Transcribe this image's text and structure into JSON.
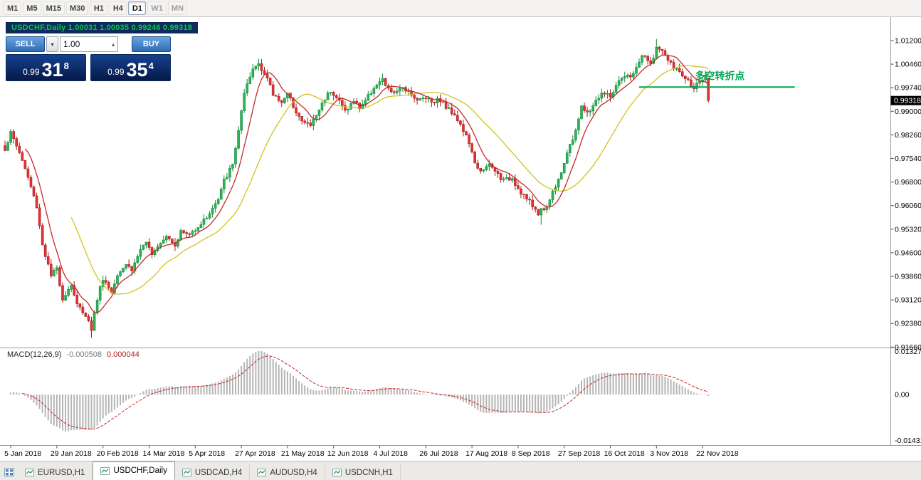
{
  "toolbar": {
    "timeframes": [
      {
        "label": "M1"
      },
      {
        "label": "M5"
      },
      {
        "label": "M15"
      },
      {
        "label": "M30"
      },
      {
        "label": "H1"
      },
      {
        "label": "H4"
      },
      {
        "label": "D1",
        "active": true
      },
      {
        "label": "W1",
        "muted": true
      },
      {
        "label": "MN",
        "muted": true
      }
    ]
  },
  "chart_header": {
    "text": "USDCHF,Daily  1.00031 1.00035 0.99246 0.99318"
  },
  "one_click": {
    "sell_label": "SELL",
    "buy_label": "BUY",
    "volume": "1.00",
    "sell_price": {
      "prefix": "0.99",
      "big": "31",
      "sup": "8"
    },
    "buy_price": {
      "prefix": "0.99",
      "big": "35",
      "sup": "4"
    }
  },
  "macd_panel": {
    "label": "MACD(12,26,9)",
    "macd_value": "-0.000508",
    "signal_value": "0.000044"
  },
  "tabs": [
    {
      "label": "EURUSD,H1"
    },
    {
      "label": "USDCHF,Daily",
      "active": true
    },
    {
      "label": "USDCAD,H4"
    },
    {
      "label": "AUDUSD,H4"
    },
    {
      "label": "USDCNH,H1"
    }
  ],
  "colors": {
    "up_fill": "#2cb457",
    "up_border": "#128a3c",
    "down_fill": "#e23434",
    "down_border": "#a81d1d",
    "ma_fast": "#c62828",
    "ma_slow": "#d1c41e",
    "macd_hist": "#b5b5b5",
    "macd_signal": "#cc2222",
    "annotation": "#00a651",
    "axis_text": "#000000",
    "current_price_bg": "#000000",
    "current_price_text": "#ffffff",
    "separator": "#9a9a9a"
  },
  "chart_data": {
    "type": "candlestick",
    "symbol": "USDCHF",
    "timeframe": "Daily",
    "ohlc_current": {
      "open": 1.00031,
      "high": 1.00035,
      "low": 0.99246,
      "close": 0.99318
    },
    "current_price": "0.99318",
    "y_axis": {
      "max": 1.012,
      "min": 0.9166,
      "tick_step": 0.0074
    },
    "y_labels": [
      "1.01200",
      "1.00460",
      "0.99740",
      "0.99000",
      "0.98260",
      "0.97540",
      "0.96800",
      "0.96060",
      "0.95320",
      "0.94600",
      "0.93860",
      "0.93120",
      "0.92380",
      "0.91660"
    ],
    "x_labels": [
      "5 Jan 2018",
      "29 Jan 2018",
      "20 Feb 2018",
      "14 Mar 2018",
      "5 Apr 2018",
      "27 Apr 2018",
      "21 May 2018",
      "12 Jun 2018",
      "4 Jul 2018",
      "26 Jul 2018",
      "17 Aug 2018",
      "8 Sep 2018",
      "27 Sep 2018",
      "16 Oct 2018",
      "3 Nov 2018",
      "22 Nov 2018"
    ],
    "label_start_index": 2,
    "label_every": 16,
    "candle_count": 245,
    "price_anchors": [
      [
        0,
        0.978
      ],
      [
        2,
        0.983
      ],
      [
        5,
        0.977
      ],
      [
        8,
        0.969
      ],
      [
        11,
        0.96
      ],
      [
        13,
        0.948
      ],
      [
        16,
        0.938
      ],
      [
        18,
        0.9405
      ],
      [
        20,
        0.931
      ],
      [
        23,
        0.9355
      ],
      [
        25,
        0.929
      ],
      [
        28,
        0.926
      ],
      [
        30,
        0.9215
      ],
      [
        32,
        0.931
      ],
      [
        34,
        0.9375
      ],
      [
        37,
        0.933
      ],
      [
        39,
        0.939
      ],
      [
        42,
        0.942
      ],
      [
        44,
        0.94
      ],
      [
        47,
        0.9465
      ],
      [
        49,
        0.948
      ],
      [
        51,
        0.9455
      ],
      [
        54,
        0.949
      ],
      [
        56,
        0.951
      ],
      [
        59,
        0.948
      ],
      [
        61,
        0.952
      ],
      [
        64,
        0.951
      ],
      [
        66,
        0.953
      ],
      [
        69,
        0.9555
      ],
      [
        71,
        0.958
      ],
      [
        74,
        0.962
      ],
      [
        76,
        0.968
      ],
      [
        79,
        0.973
      ],
      [
        81,
        0.984
      ],
      [
        83,
        0.995
      ],
      [
        86,
        1.003
      ],
      [
        88,
        1.005
      ],
      [
        91,
        1.0
      ],
      [
        93,
        0.995
      ],
      [
        96,
        0.993
      ],
      [
        98,
        0.995
      ],
      [
        101,
        0.99
      ],
      [
        103,
        0.9865
      ],
      [
        106,
        0.9855
      ],
      [
        108,
        0.9885
      ],
      [
        111,
        0.994
      ],
      [
        113,
        0.9965
      ],
      [
        116,
        0.993
      ],
      [
        118,
        0.99
      ],
      [
        121,
        0.993
      ],
      [
        123,
        0.991
      ],
      [
        126,
        0.9945
      ],
      [
        128,
        0.9975
      ],
      [
        131,
        0.9995
      ],
      [
        133,
        0.9965
      ],
      [
        136,
        0.9955
      ],
      [
        138,
        0.9975
      ],
      [
        141,
        0.9955
      ],
      [
        143,
        0.993
      ],
      [
        146,
        0.9945
      ],
      [
        148,
        0.993
      ],
      [
        151,
        0.9935
      ],
      [
        153,
        0.991
      ],
      [
        156,
        0.989
      ],
      [
        158,
        0.9855
      ],
      [
        161,
        0.98
      ],
      [
        163,
        0.973
      ],
      [
        166,
        0.971
      ],
      [
        168,
        0.973
      ],
      [
        171,
        0.97
      ],
      [
        173,
        0.968
      ],
      [
        176,
        0.969
      ],
      [
        178,
        0.9655
      ],
      [
        180,
        0.9635
      ],
      [
        183,
        0.96
      ],
      [
        185,
        0.958
      ],
      [
        188,
        0.96
      ],
      [
        190,
        0.9645
      ],
      [
        193,
        0.971
      ],
      [
        195,
        0.9765
      ],
      [
        197,
        0.981
      ],
      [
        200,
        0.991
      ],
      [
        202,
        0.989
      ],
      [
        205,
        0.993
      ],
      [
        207,
        0.9955
      ],
      [
        210,
        0.9945
      ],
      [
        212,
        0.9975
      ],
      [
        214,
        1.0
      ],
      [
        217,
        1.001
      ],
      [
        219,
        1.003
      ],
      [
        221,
        1.0075
      ],
      [
        224,
        1.0045
      ],
      [
        226,
        1.0098
      ],
      [
        229,
        1.0075
      ],
      [
        231,
        1.0045
      ],
      [
        234,
        1.002
      ],
      [
        236,
        1.0
      ],
      [
        239,
        0.9975
      ],
      [
        241,
        0.9985
      ],
      [
        243,
        1.0005
      ],
      [
        244,
        0.9932
      ]
    ],
    "spikes": [
      {
        "index": 30,
        "low": 0.9187
      },
      {
        "index": 186,
        "low": 0.9542
      },
      {
        "index": 226,
        "high": 1.0125
      }
    ],
    "ma_fast_period": 8,
    "ma_slow_period": 24,
    "macd": {
      "fast": 12,
      "slow": 26,
      "signal": 9,
      "scale_labels": {
        "top": "0.01327",
        "mid": "0.00",
        "bottom": "-0.01431"
      },
      "scale_top": 0.01327,
      "scale_bottom": -0.01431
    },
    "trendline": {
      "price": 0.9974,
      "from_index": 220,
      "to_index": 274,
      "label": "多空转折点",
      "label_index": 248
    }
  }
}
